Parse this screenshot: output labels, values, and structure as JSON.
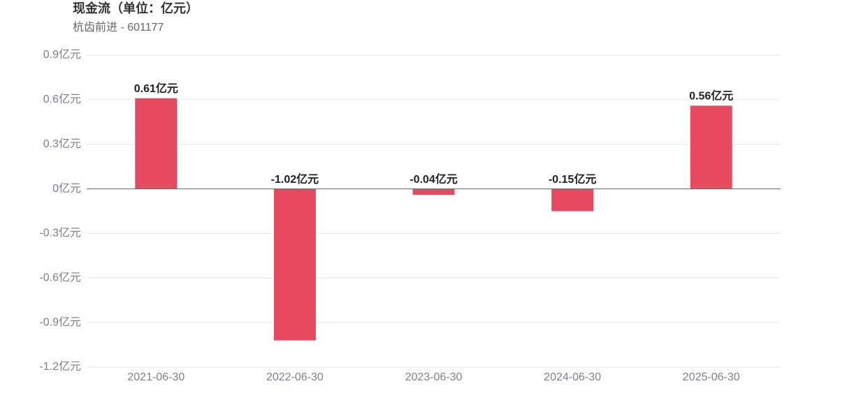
{
  "chart_data": {
    "type": "bar",
    "title": "现金流（单位：亿元）",
    "subtitle": "杭齿前进 - 601177",
    "categories": [
      "2021-06-30",
      "2022-06-30",
      "2023-06-30",
      "2024-06-30",
      "2025-06-30"
    ],
    "values": [
      0.61,
      -1.02,
      -0.04,
      -0.15,
      0.56
    ],
    "value_labels": [
      "0.61亿元",
      "-1.02亿元",
      "-0.04亿元",
      "-0.15亿元",
      "0.56亿元"
    ],
    "color": "#e64a5f",
    "ylim": [
      -1.2,
      0.9
    ],
    "yticks": [
      {
        "value": -1.2,
        "label": "-1.2亿元"
      },
      {
        "value": -0.9,
        "label": "-0.9亿元"
      },
      {
        "value": -0.6,
        "label": "-0.6亿元"
      },
      {
        "value": -0.3,
        "label": "-0.3亿元"
      },
      {
        "value": 0,
        "label": "0亿元"
      },
      {
        "value": 0.3,
        "label": "0.3亿元"
      },
      {
        "value": 0.6,
        "label": "0.6亿元"
      },
      {
        "value": 0.9,
        "label": "0.9亿元"
      }
    ],
    "grid": true
  }
}
